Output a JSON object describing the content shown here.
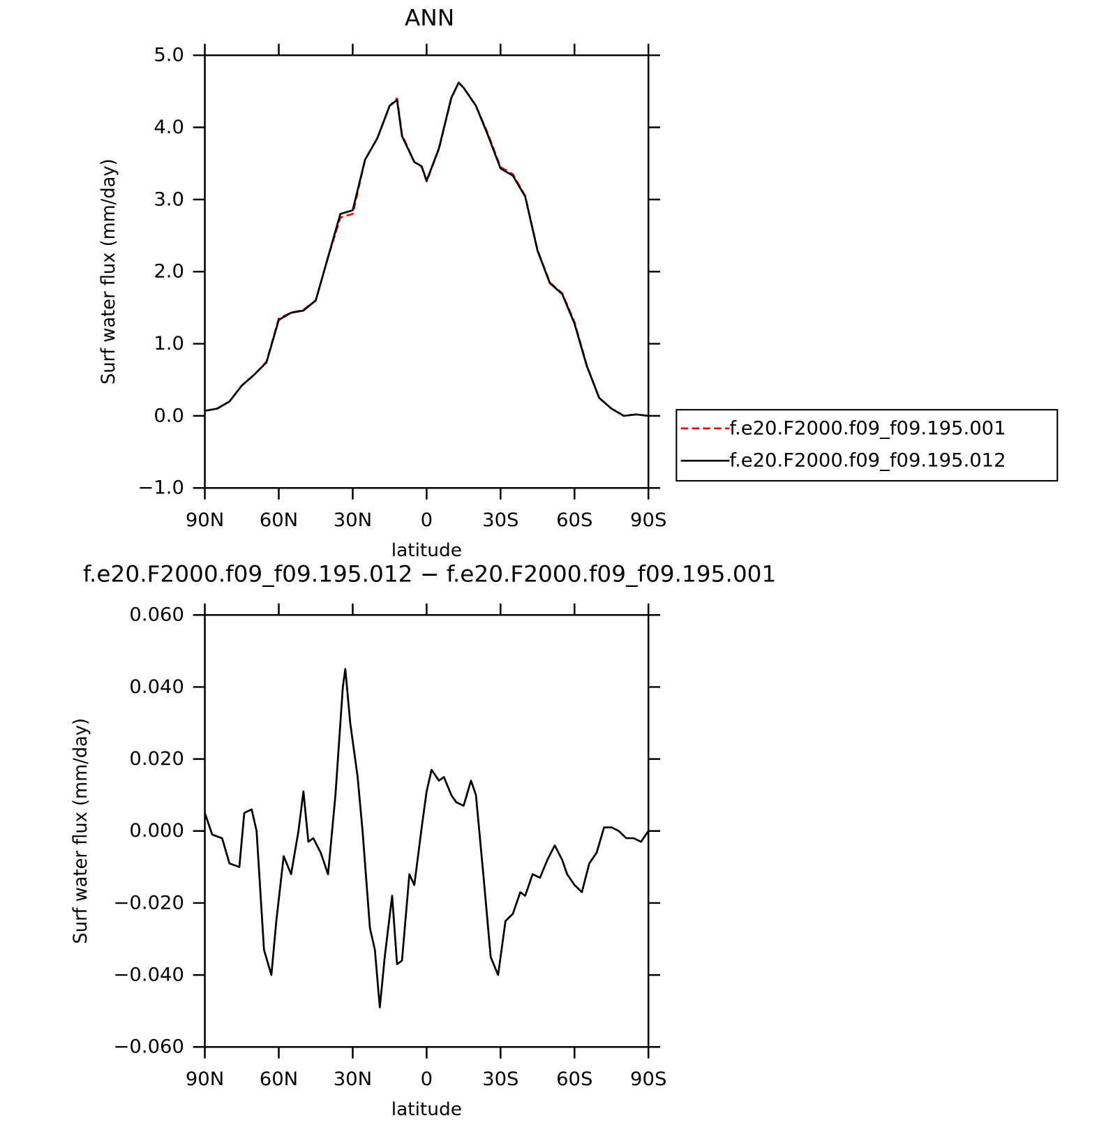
{
  "chart_data": [
    {
      "type": "line",
      "title": "ANN",
      "xlabel": "latitude",
      "ylabel": "Surf water flux (mm/day)",
      "legend": "right",
      "xlim": [
        90,
        -90
      ],
      "xticks": [
        {
          "value": 90,
          "label": "90N"
        },
        {
          "value": 60,
          "label": "60N"
        },
        {
          "value": 30,
          "label": "30N"
        },
        0,
        {
          "value": -30,
          "label": "30S"
        },
        {
          "value": -60,
          "label": "60S"
        },
        {
          "value": -90,
          "label": "90S"
        }
      ],
      "ylim": [
        -1,
        5
      ],
      "yticks": [
        {
          "value": -1,
          "label": "−1.0"
        },
        {
          "value": 0,
          "label": "0.0"
        },
        {
          "value": 1,
          "label": "1.0"
        },
        {
          "value": 2,
          "label": "2.0"
        },
        {
          "value": 3,
          "label": "3.0"
        },
        {
          "value": 4,
          "label": "4.0"
        },
        {
          "value": 5,
          "label": "5.0"
        }
      ],
      "x": [
        90,
        85,
        80,
        75,
        70,
        65,
        60,
        55,
        50,
        45,
        40,
        35,
        30,
        25,
        20,
        15,
        12,
        10,
        5,
        2,
        0,
        -5,
        -10,
        -13,
        -15,
        -20,
        -25,
        -30,
        -35,
        -40,
        -45,
        -50,
        -55,
        -60,
        -65,
        -70,
        -75,
        -80,
        -85,
        -90
      ],
      "series": [
        {
          "name": "f.e20.F2000.f09_f09.195.001",
          "color": "#ff0000",
          "dashed": true,
          "values": [
            0.07,
            0.1,
            0.2,
            0.42,
            0.57,
            0.75,
            1.35,
            1.43,
            1.47,
            1.6,
            2.2,
            2.75,
            2.8,
            3.55,
            3.85,
            4.3,
            4.4,
            3.9,
            3.52,
            3.45,
            3.25,
            3.7,
            4.4,
            4.62,
            4.55,
            4.3,
            3.9,
            3.45,
            3.35,
            3.05,
            2.3,
            1.85,
            1.7,
            1.3,
            0.7,
            0.25,
            0.1,
            0.0,
            0.02,
            0.0
          ]
        },
        {
          "name": "f.e20.F2000.f09_f09.195.012",
          "color": "#000000",
          "dashed": false,
          "values": [
            0.07,
            0.1,
            0.2,
            0.42,
            0.57,
            0.74,
            1.33,
            1.43,
            1.46,
            1.6,
            2.2,
            2.8,
            2.85,
            3.55,
            3.85,
            4.3,
            4.38,
            3.88,
            3.52,
            3.46,
            3.26,
            3.71,
            4.41,
            4.62,
            4.55,
            4.3,
            3.88,
            3.43,
            3.33,
            3.04,
            2.29,
            1.84,
            1.69,
            1.28,
            0.69,
            0.25,
            0.1,
            0.0,
            0.02,
            0.0
          ]
        }
      ]
    },
    {
      "type": "line",
      "title": "f.e20.F2000.f09_f09.195.012 − f.e20.F2000.f09_f09.195.001",
      "xlabel": "latitude",
      "ylabel": "Surf water flux (mm/day)",
      "xlim": [
        90,
        -90
      ],
      "xticks": [
        {
          "value": 90,
          "label": "90N"
        },
        {
          "value": 60,
          "label": "60N"
        },
        {
          "value": 30,
          "label": "30N"
        },
        0,
        {
          "value": -30,
          "label": "30S"
        },
        {
          "value": -60,
          "label": "60S"
        },
        {
          "value": -90,
          "label": "90S"
        }
      ],
      "ylim": [
        -0.06,
        0.06
      ],
      "yticks": [
        {
          "value": -0.06,
          "label": "−0.060"
        },
        {
          "value": -0.04,
          "label": "−0.040"
        },
        {
          "value": -0.02,
          "label": "−0.020"
        },
        {
          "value": 0,
          "label": "0.000"
        },
        {
          "value": 0.02,
          "label": "0.020"
        },
        {
          "value": 0.04,
          "label": "0.040"
        },
        {
          "value": 0.06,
          "label": "0.060"
        }
      ],
      "x": [
        90,
        87,
        83,
        80,
        76,
        74,
        71,
        69,
        66,
        63,
        61,
        58,
        55,
        52,
        50,
        48,
        46,
        43,
        40,
        37,
        34,
        33,
        31,
        28,
        26,
        23,
        21,
        19,
        17,
        14,
        12,
        10,
        7,
        5,
        2,
        0,
        -2,
        -5,
        -7,
        -10,
        -12,
        -15,
        -18,
        -20,
        -23,
        -26,
        -29,
        -32,
        -35,
        -38,
        -40,
        -43,
        -46,
        -49,
        -52,
        -55,
        -57,
        -60,
        -63,
        -66,
        -69,
        -72,
        -75,
        -78,
        -81,
        -84,
        -87,
        -90
      ],
      "series": [
        {
          "color": "#000000",
          "dashed": false,
          "values": [
            0.005,
            -0.001,
            -0.002,
            -0.009,
            -0.01,
            0.005,
            0.006,
            0.0,
            -0.033,
            -0.04,
            -0.025,
            -0.007,
            -0.012,
            0.0,
            0.011,
            -0.003,
            -0.002,
            -0.006,
            -0.012,
            0.01,
            0.04,
            0.045,
            0.03,
            0.015,
            0.0,
            -0.027,
            -0.033,
            -0.049,
            -0.035,
            -0.018,
            -0.037,
            -0.036,
            -0.012,
            -0.015,
            0.001,
            0.011,
            0.017,
            0.014,
            0.015,
            0.01,
            0.008,
            0.007,
            0.014,
            0.01,
            -0.012,
            -0.035,
            -0.04,
            -0.025,
            -0.023,
            -0.017,
            -0.018,
            -0.012,
            -0.013,
            -0.008,
            -0.004,
            -0.008,
            -0.012,
            -0.015,
            -0.017,
            -0.009,
            -0.006,
            0.001,
            0.001,
            0.0,
            -0.002,
            -0.002,
            -0.003,
            0.0
          ]
        }
      ]
    }
  ]
}
